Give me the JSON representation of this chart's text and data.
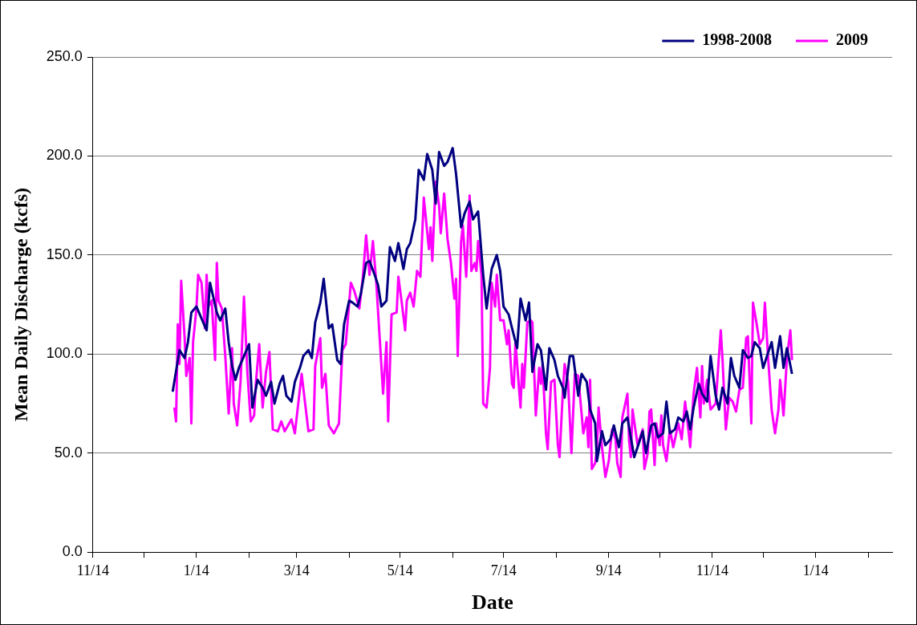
{
  "chart_data": {
    "type": "line",
    "xlabel": "Date",
    "ylabel": "Mean Daily Discharge (kcfs)",
    "xlim": [
      "2008-11-14",
      "2010-02-28"
    ],
    "xticks": [
      {
        "value": "2008-11-14",
        "label": "11/14"
      },
      {
        "value": "2008-12-14",
        "label": null
      },
      {
        "value": "2009-01-14",
        "label": "1/14"
      },
      {
        "value": "2009-02-14",
        "label": null
      },
      {
        "value": "2009-03-14",
        "label": "3/14"
      },
      {
        "value": "2009-04-14",
        "label": null
      },
      {
        "value": "2009-05-14",
        "label": "5/14"
      },
      {
        "value": "2009-06-14",
        "label": null
      },
      {
        "value": "2009-07-14",
        "label": "7/14"
      },
      {
        "value": "2009-08-14",
        "label": null
      },
      {
        "value": "2009-09-14",
        "label": "9/14"
      },
      {
        "value": "2009-10-14",
        "label": null
      },
      {
        "value": "2009-11-14",
        "label": "11/14"
      },
      {
        "value": "2009-12-14",
        "label": null
      },
      {
        "value": "2010-01-14",
        "label": "1/14"
      },
      {
        "value": "2010-02-14",
        "label": null
      }
    ],
    "ylim": [
      0,
      250
    ],
    "yticks": [
      {
        "value": 0,
        "label": "0.0"
      },
      {
        "value": 50,
        "label": "50.0"
      },
      {
        "value": 100,
        "label": "100.0"
      },
      {
        "value": 150,
        "label": "150.0"
      },
      {
        "value": 200,
        "label": "200.0"
      },
      {
        "value": 250,
        "label": "250.0"
      }
    ],
    "grid": "y",
    "legend": "top right",
    "series": [
      {
        "name": "1998-2008",
        "color": "#000080",
        "x": [
          "2008-12-31",
          "2009-01-04",
          "2009-01-07",
          "2009-01-09",
          "2009-01-11",
          "2009-01-14",
          "2009-01-20",
          "2009-01-22",
          "2009-01-26",
          "2009-01-28",
          "2009-01-31",
          "2009-02-02",
          "2009-02-04",
          "2009-02-06",
          "2009-02-08",
          "2009-02-11",
          "2009-02-14",
          "2009-02-16",
          "2009-02-19",
          "2009-02-22",
          "2009-02-24",
          "2009-02-27",
          "2009-03-01",
          "2009-03-04",
          "2009-03-06",
          "2009-03-08",
          "2009-03-11",
          "2009-03-13",
          "2009-03-16",
          "2009-03-18",
          "2009-03-21",
          "2009-03-23",
          "2009-03-25",
          "2009-03-28",
          "2009-03-30",
          "2009-04-02",
          "2009-04-04",
          "2009-04-07",
          "2009-04-09",
          "2009-04-11",
          "2009-04-14",
          "2009-04-16",
          "2009-04-19",
          "2009-04-21",
          "2009-04-24",
          "2009-04-26",
          "2009-04-29",
          "2009-05-01",
          "2009-05-03",
          "2009-05-06",
          "2009-05-08",
          "2009-05-11",
          "2009-05-13",
          "2009-05-16",
          "2009-05-18",
          "2009-05-20",
          "2009-05-23",
          "2009-05-25",
          "2009-05-28",
          "2009-05-30",
          "2009-06-02",
          "2009-06-04",
          "2009-06-06",
          "2009-06-09",
          "2009-06-11",
          "2009-06-14",
          "2009-06-16",
          "2009-06-19",
          "2009-06-21",
          "2009-06-24",
          "2009-06-26",
          "2009-06-29",
          "2009-07-02",
          "2009-07-04",
          "2009-07-07",
          "2009-07-10",
          "2009-07-12",
          "2009-07-14",
          "2009-07-17",
          "2009-07-19",
          "2009-07-22",
          "2009-07-24",
          "2009-07-27",
          "2009-07-29",
          "2009-07-31",
          "2009-08-03",
          "2009-08-05",
          "2009-08-08",
          "2009-08-10",
          "2009-08-13",
          "2009-08-15",
          "2009-08-18",
          "2009-08-19",
          "2009-08-22",
          "2009-08-24",
          "2009-08-27",
          "2009-08-29",
          "2009-09-01",
          "2009-09-03",
          "2009-09-06",
          "2009-09-07",
          "2009-09-10",
          "2009-09-12",
          "2009-09-15",
          "2009-09-17",
          "2009-09-20",
          "2009-09-22",
          "2009-09-25",
          "2009-09-27",
          "2009-09-29",
          "2009-10-01",
          "2009-10-04",
          "2009-10-06",
          "2009-10-09",
          "2009-10-11",
          "2009-10-13",
          "2009-10-16",
          "2009-10-18",
          "2009-10-20",
          "2009-10-23",
          "2009-10-25",
          "2009-10-28",
          "2009-10-30",
          "2009-11-01",
          "2009-11-03",
          "2009-11-06",
          "2009-11-08",
          "2009-11-11",
          "2009-11-13",
          "2009-11-16",
          "2009-11-18",
          "2009-11-20",
          "2009-11-23",
          "2009-11-25",
          "2009-11-27",
          "2009-11-30",
          "2009-12-02",
          "2009-12-05",
          "2009-12-07",
          "2009-12-09",
          "2009-12-12",
          "2009-12-14",
          "2009-12-17",
          "2009-12-19",
          "2009-12-21",
          "2009-12-24",
          "2009-12-26",
          "2009-12-28",
          "2009-12-31"
        ],
        "values": [
          81,
          102,
          98,
          106,
          121,
          124,
          112,
          136,
          121,
          117,
          123,
          106,
          94,
          87,
          93,
          99,
          105,
          73,
          87,
          83,
          79,
          86,
          75,
          85,
          89,
          79,
          76,
          86,
          93,
          99,
          102,
          98,
          116,
          126,
          138,
          113,
          115,
          97,
          95,
          115,
          127,
          126,
          124,
          131,
          146,
          147,
          140,
          135,
          124,
          127,
          154,
          147,
          156,
          143,
          153,
          156,
          168,
          193,
          188,
          201,
          193,
          176,
          202,
          195,
          197,
          204,
          191,
          164,
          171,
          177,
          168,
          172,
          140,
          123,
          143,
          150,
          142,
          124,
          120,
          113,
          103,
          128,
          117,
          126,
          91,
          105,
          102,
          82,
          103,
          97,
          89,
          83,
          78,
          99,
          99,
          79,
          90,
          86,
          72,
          65,
          46,
          61,
          54,
          57,
          64,
          53,
          65,
          68,
          58,
          48,
          53,
          61,
          50,
          64,
          65,
          58,
          60,
          76,
          60,
          62,
          68,
          66,
          71,
          62,
          73,
          85,
          80,
          76,
          99,
          79,
          72,
          83,
          75,
          98,
          89,
          83,
          102,
          98,
          99,
          106,
          103,
          93,
          101,
          106,
          93,
          109,
          93,
          103,
          90
        ]
      },
      {
        "name": "2009",
        "color": "#ff00ff",
        "x": [
          "2009-01-01",
          "2009-01-02",
          "2009-01-03",
          "2009-01-04",
          "2009-01-05",
          "2009-01-07",
          "2009-01-08",
          "2009-01-10",
          "2009-01-11",
          "2009-01-12",
          "2009-01-14",
          "2009-01-15",
          "2009-01-17",
          "2009-01-19",
          "2009-01-20",
          "2009-01-21",
          "2009-01-23",
          "2009-01-25",
          "2009-01-26",
          "2009-01-27",
          "2009-01-29",
          "2009-01-31",
          "2009-02-02",
          "2009-02-04",
          "2009-02-05",
          "2009-02-07",
          "2009-02-09",
          "2009-02-11",
          "2009-02-13",
          "2009-02-15",
          "2009-02-17",
          "2009-02-18",
          "2009-02-20",
          "2009-02-22",
          "2009-02-24",
          "2009-02-26",
          "2009-02-28",
          "2009-03-03",
          "2009-03-05",
          "2009-03-07",
          "2009-03-11",
          "2009-03-13",
          "2009-03-17",
          "2009-03-21",
          "2009-03-24",
          "2009-03-25",
          "2009-03-28",
          "2009-03-29",
          "2009-03-31",
          "2009-04-02",
          "2009-04-05",
          "2009-04-08",
          "2009-04-10",
          "2009-04-12",
          "2009-04-15",
          "2009-04-17",
          "2009-04-20",
          "2009-04-22",
          "2009-04-24",
          "2009-04-26",
          "2009-04-28",
          "2009-04-30",
          "2009-05-02",
          "2009-05-04",
          "2009-05-06",
          "2009-05-07",
          "2009-05-09",
          "2009-05-12",
          "2009-05-13",
          "2009-05-15",
          "2009-05-17",
          "2009-05-18",
          "2009-05-20",
          "2009-05-22",
          "2009-05-24",
          "2009-05-26",
          "2009-05-28",
          "2009-05-31",
          "2009-06-01",
          "2009-06-02",
          "2009-06-04",
          "2009-06-06",
          "2009-06-07",
          "2009-06-09",
          "2009-06-11",
          "2009-06-13",
          "2009-06-15",
          "2009-06-16",
          "2009-06-17",
          "2009-06-19",
          "2009-06-20",
          "2009-06-22",
          "2009-06-24",
          "2009-06-25",
          "2009-06-27",
          "2009-06-28",
          "2009-06-29",
          "2009-07-01",
          "2009-07-02",
          "2009-07-04",
          "2009-07-06",
          "2009-07-07",
          "2009-07-09",
          "2009-07-10",
          "2009-07-12",
          "2009-07-14",
          "2009-07-16",
          "2009-07-17",
          "2009-07-19",
          "2009-07-20",
          "2009-07-21",
          "2009-07-22",
          "2009-07-24",
          "2009-07-25",
          "2009-07-26",
          "2009-07-28",
          "2009-07-30",
          "2009-07-31",
          "2009-08-02",
          "2009-08-04",
          "2009-08-05",
          "2009-08-06",
          "2009-08-08",
          "2009-08-09",
          "2009-08-11",
          "2009-08-13",
          "2009-08-15",
          "2009-08-16",
          "2009-08-18",
          "2009-08-19",
          "2009-08-21",
          "2009-08-23",
          "2009-08-25",
          "2009-08-27",
          "2009-08-30",
          "2009-09-01",
          "2009-09-02",
          "2009-09-03",
          "2009-09-04",
          "2009-09-06",
          "2009-09-07",
          "2009-09-08",
          "2009-09-10",
          "2009-09-12",
          "2009-09-14",
          "2009-09-16",
          "2009-09-18",
          "2009-09-19",
          "2009-09-21",
          "2009-09-22",
          "2009-09-25",
          "2009-09-26",
          "2009-09-27",
          "2009-09-28",
          "2009-09-30",
          "2009-10-01",
          "2009-10-04",
          "2009-10-05",
          "2009-10-07",
          "2009-10-08",
          "2009-10-09",
          "2009-10-11",
          "2009-10-12",
          "2009-10-14",
          "2009-10-15",
          "2009-10-16",
          "2009-10-18",
          "2009-10-20",
          "2009-10-22",
          "2009-10-25",
          "2009-10-27",
          "2009-10-29",
          "2009-10-31",
          "2009-11-01",
          "2009-11-03",
          "2009-11-05",
          "2009-11-07",
          "2009-11-08",
          "2009-11-09",
          "2009-11-11",
          "2009-11-13",
          "2009-11-16",
          "2009-11-19",
          "2009-11-20",
          "2009-11-22",
          "2009-11-24",
          "2009-11-26",
          "2009-11-28",
          "2009-11-30",
          "2009-12-02",
          "2009-12-04",
          "2009-12-05",
          "2009-12-07",
          "2009-12-08",
          "2009-12-10",
          "2009-12-12",
          "2009-12-14",
          "2009-12-15",
          "2009-12-17",
          "2009-12-19",
          "2009-12-21",
          "2009-12-23",
          "2009-12-24",
          "2009-12-26",
          "2009-12-28",
          "2009-12-30",
          "2009-12-31"
        ],
        "values": [
          73,
          66,
          115,
          95,
          137,
          109,
          89,
          98,
          65,
          106,
          123,
          140,
          136,
          113,
          140,
          124,
          127,
          97,
          146,
          127,
          123,
          99,
          70,
          103,
          75,
          64,
          86,
          129,
          91,
          66,
          69,
          85,
          105,
          73,
          91,
          101,
          62,
          61,
          66,
          61,
          67,
          60,
          90,
          61,
          62,
          94,
          108,
          83,
          90,
          64,
          60,
          65,
          102,
          105,
          136,
          132,
          123,
          138,
          160,
          140,
          157,
          136,
          108,
          80,
          106,
          66,
          120,
          121,
          139,
          126,
          112,
          127,
          131,
          124,
          142,
          139,
          179,
          153,
          164,
          147,
          187,
          175,
          161,
          181,
          158,
          146,
          128,
          138,
          99,
          157,
          165,
          139,
          180,
          142,
          146,
          142,
          157,
          140,
          75,
          73,
          93,
          136,
          124,
          140,
          117,
          117,
          105,
          112,
          85,
          83,
          106,
          95,
          73,
          95,
          83,
          116,
          117,
          116,
          69,
          93,
          85,
          95,
          60,
          52,
          86,
          87,
          54,
          48,
          82,
          95,
          86,
          50,
          90,
          89,
          60,
          68,
          53,
          87,
          42,
          45,
          52,
          73,
          53,
          38,
          46,
          62,
          57,
          45,
          38,
          68,
          80,
          56,
          48,
          72,
          60,
          54,
          62,
          42,
          50,
          71,
          72,
          44,
          65,
          54,
          69,
          54,
          46,
          62,
          53,
          65,
          57,
          76,
          61,
          53,
          80,
          93,
          68,
          94,
          75,
          87,
          72,
          75,
          112,
          98,
          62,
          78,
          76,
          71,
          82,
          83,
          108,
          109,
          65,
          126,
          116,
          105,
          108,
          126,
          97,
          72,
          60,
          72,
          87,
          69,
          98,
          112,
          97
        ]
      }
    ]
  }
}
